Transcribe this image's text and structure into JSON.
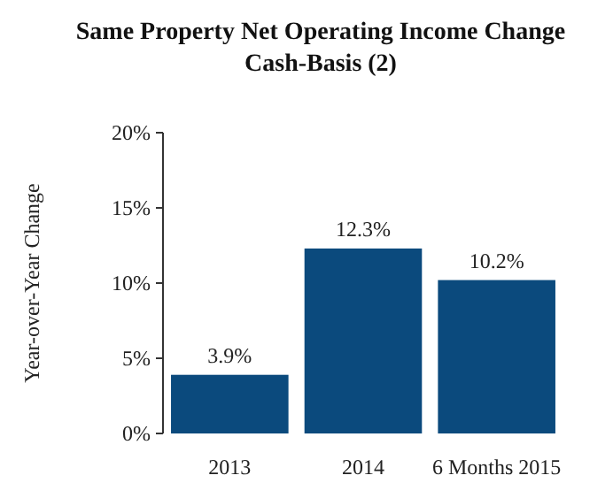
{
  "chart_data": {
    "type": "bar",
    "title": "Same Property Net Operating Income Change\nCash-Basis (2)",
    "ylabel": "Year-over-Year Change",
    "categories": [
      "2013",
      "2014",
      "6 Months 2015"
    ],
    "values": [
      3.9,
      12.3,
      10.2
    ],
    "value_labels": [
      "3.9%",
      "12.3%",
      "10.2%"
    ],
    "color": "#0b4a7d",
    "ylim": [
      0,
      20
    ],
    "yticks": [
      {
        "value": 0,
        "label": "0%"
      },
      {
        "value": 5,
        "label": "5%"
      },
      {
        "value": 10,
        "label": "10%"
      },
      {
        "value": 15,
        "label": "15%"
      },
      {
        "value": 20,
        "label": "20%"
      }
    ]
  }
}
